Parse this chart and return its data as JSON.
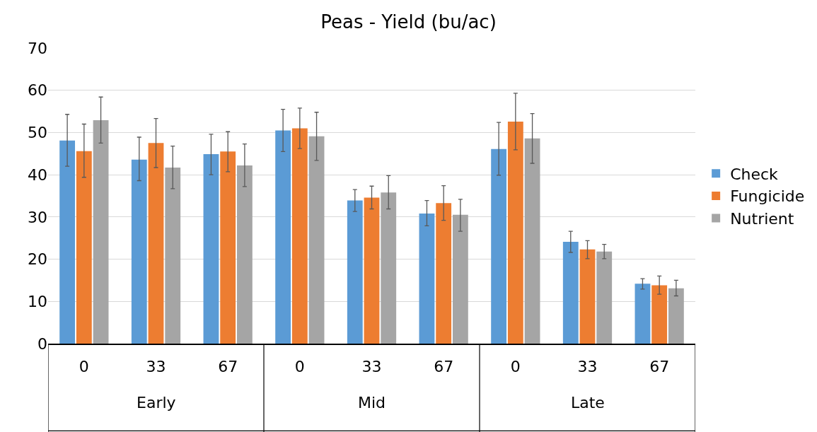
{
  "chart_data": {
    "type": "bar",
    "title": "Peas - Yield (bu/ac)",
    "categories": [
      "0",
      "33",
      "67",
      "0",
      "33",
      "67",
      "0",
      "33",
      "67"
    ],
    "annotations": [
      "Early",
      "Mid",
      "Late"
    ],
    "series": [
      {
        "name": "Check",
        "color": "#5b9bd5",
        "values": [
          48.1,
          43.6,
          44.9,
          50.5,
          33.9,
          30.8,
          46.1,
          24.1,
          14.2
        ],
        "errors": [
          [
            42,
            54.3
          ],
          [
            38.6,
            48.9
          ],
          [
            40,
            49.6
          ],
          [
            45.5,
            55.5
          ],
          [
            31.3,
            36.5
          ],
          [
            27.9,
            33.9
          ],
          [
            39.9,
            52.4
          ],
          [
            21.6,
            26.6
          ],
          [
            12.9,
            15.4
          ]
        ]
      },
      {
        "name": "Fungicide",
        "color": "#ed7d31",
        "values": [
          45.6,
          47.5,
          45.5,
          51,
          34.6,
          33.3,
          52.6,
          22.3,
          13.8
        ],
        "errors": [
          [
            39.4,
            52
          ],
          [
            41.7,
            53.3
          ],
          [
            40.7,
            50.2
          ],
          [
            46.2,
            55.8
          ],
          [
            31.9,
            37.3
          ],
          [
            29.2,
            37.4
          ],
          [
            45.9,
            59.3
          ],
          [
            20.1,
            24.4
          ],
          [
            11.7,
            16
          ]
        ]
      },
      {
        "name": "Nutrient",
        "color": "#a5a5a5",
        "values": [
          52.9,
          41.7,
          42.2,
          49.1,
          35.8,
          30.5,
          48.6,
          21.8,
          13.1
        ],
        "errors": [
          [
            47.5,
            58.4
          ],
          [
            36.7,
            46.8
          ],
          [
            37.2,
            47.3
          ],
          [
            43.4,
            54.8
          ],
          [
            31.9,
            39.8
          ],
          [
            26.6,
            34.2
          ],
          [
            42.7,
            54.5
          ],
          [
            20.1,
            23.5
          ],
          [
            11.3,
            15
          ]
        ]
      }
    ],
    "ylim": [
      0,
      70
    ],
    "yticks": [
      0,
      10,
      20,
      30,
      40,
      50,
      60,
      70
    ],
    "grid": "y",
    "legend": "right"
  }
}
